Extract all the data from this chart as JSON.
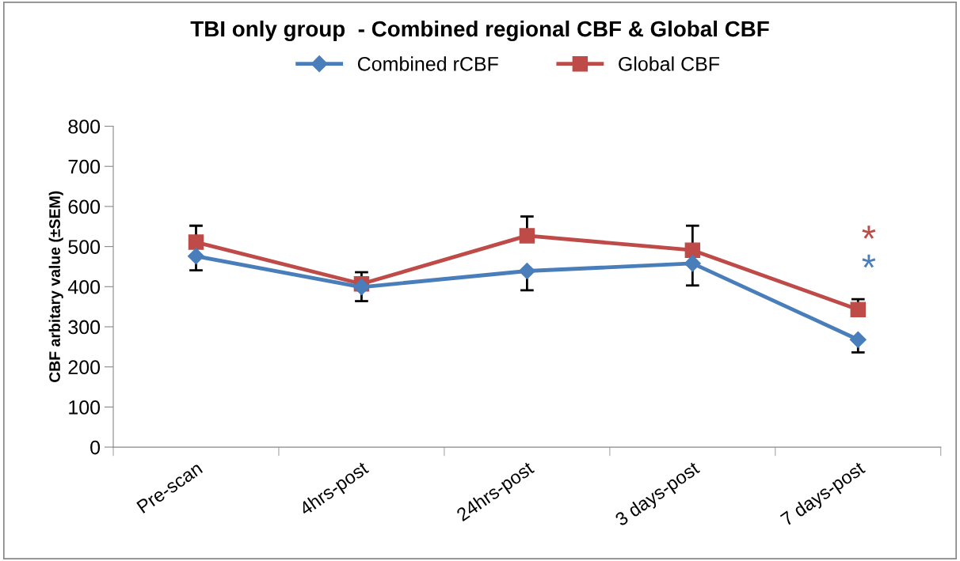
{
  "chart_data": {
    "type": "line",
    "title": "TBI only group  - Combined regional CBF & Global CBF",
    "ylabel": "CBF arbitary value (±SEM)",
    "categories": [
      "Pre-scan",
      "4hrs-post",
      "24hrs-post",
      "3 days-post",
      "7 days-post"
    ],
    "series": [
      {
        "name": "Combined rCBF",
        "color": "#4a7ebb",
        "marker": "diamond",
        "values": [
          476,
          399,
          439,
          458,
          268
        ],
        "errors": [
          [
            441,
            476
          ],
          [
            364,
            399
          ],
          [
            391,
            439
          ],
          [
            403,
            458
          ],
          [
            236,
            268
          ]
        ]
      },
      {
        "name": "Global CBF",
        "color": "#be4b48",
        "marker": "square",
        "values": [
          511,
          407,
          527,
          491,
          343
        ],
        "errors": [
          [
            511,
            552
          ],
          [
            407,
            436
          ],
          [
            527,
            575
          ],
          [
            491,
            552
          ],
          [
            343,
            369
          ]
        ]
      }
    ],
    "annotations": [
      "*",
      "*"
    ],
    "ylim": [
      0,
      800
    ],
    "yticks": [
      0,
      100,
      200,
      300,
      400,
      500,
      600,
      700,
      800
    ],
    "grid": false,
    "legend": "top",
    "line_style": "solid"
  }
}
